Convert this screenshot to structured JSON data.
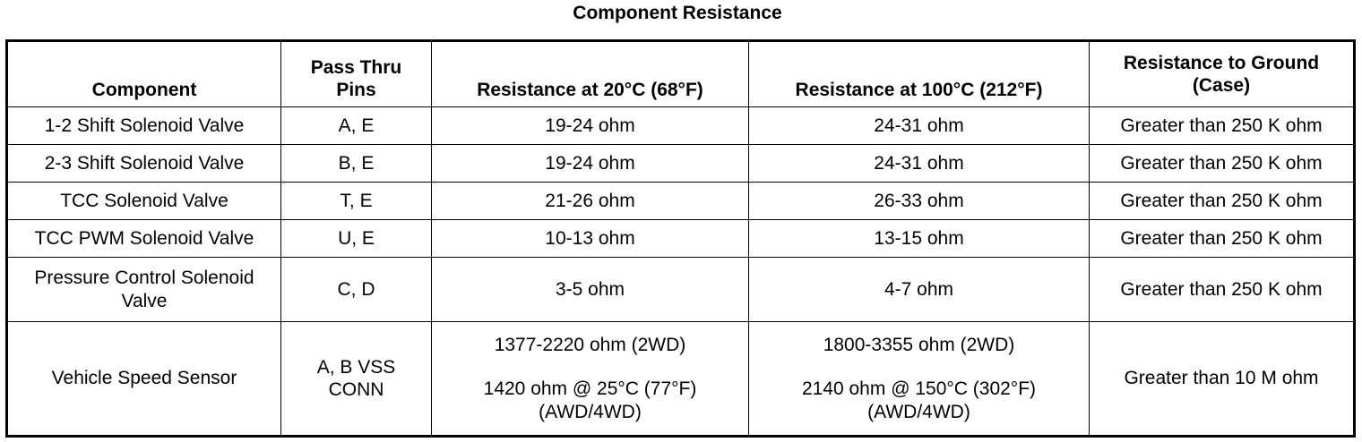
{
  "title": "Component Resistance",
  "headers": {
    "component": "Component",
    "pins": [
      "Pass Thru",
      "Pins"
    ],
    "r20": "Resistance at 20°C (68°F)",
    "r100": "Resistance at 100°C (212°F)",
    "ground": [
      "Resistance to Ground",
      "(Case)"
    ]
  },
  "rows": [
    {
      "component": "1-2 Shift Solenoid Valve",
      "pins": "A, E",
      "r20": "19-24 ohm",
      "r100": "24-31 ohm",
      "ground": "Greater than 250 K ohm"
    },
    {
      "component": "2-3 Shift Solenoid Valve",
      "pins": "B, E",
      "r20": "19-24 ohm",
      "r100": "24-31 ohm",
      "ground": "Greater than 250 K ohm"
    },
    {
      "component": "TCC Solenoid Valve",
      "pins": "T, E",
      "r20": "21-26 ohm",
      "r100": "26-33 ohm",
      "ground": "Greater than 250 K ohm"
    },
    {
      "component": "TCC PWM Solenoid Valve",
      "pins": "U, E",
      "r20": "10-13 ohm",
      "r100": "13-15 ohm",
      "ground": "Greater than 250 K ohm"
    },
    {
      "component": [
        "Pressure Control Solenoid",
        "Valve"
      ],
      "pins": "C, D",
      "r20": "3-5 ohm",
      "r100": "4-7 ohm",
      "ground": "Greater than 250 K ohm"
    },
    {
      "component": "Vehicle Speed Sensor",
      "pins": [
        "A, B VSS",
        "CONN"
      ],
      "r20": [
        "1377-2220 ohm (2WD)",
        "1420 ohm @ 25°C (77°F)",
        "(AWD/4WD)"
      ],
      "r100": [
        "1800-3355 ohm (2WD)",
        "2140 ohm @ 150°C (302°F)",
        "(AWD/4WD)"
      ],
      "ground": "Greater than 10 M ohm"
    }
  ]
}
